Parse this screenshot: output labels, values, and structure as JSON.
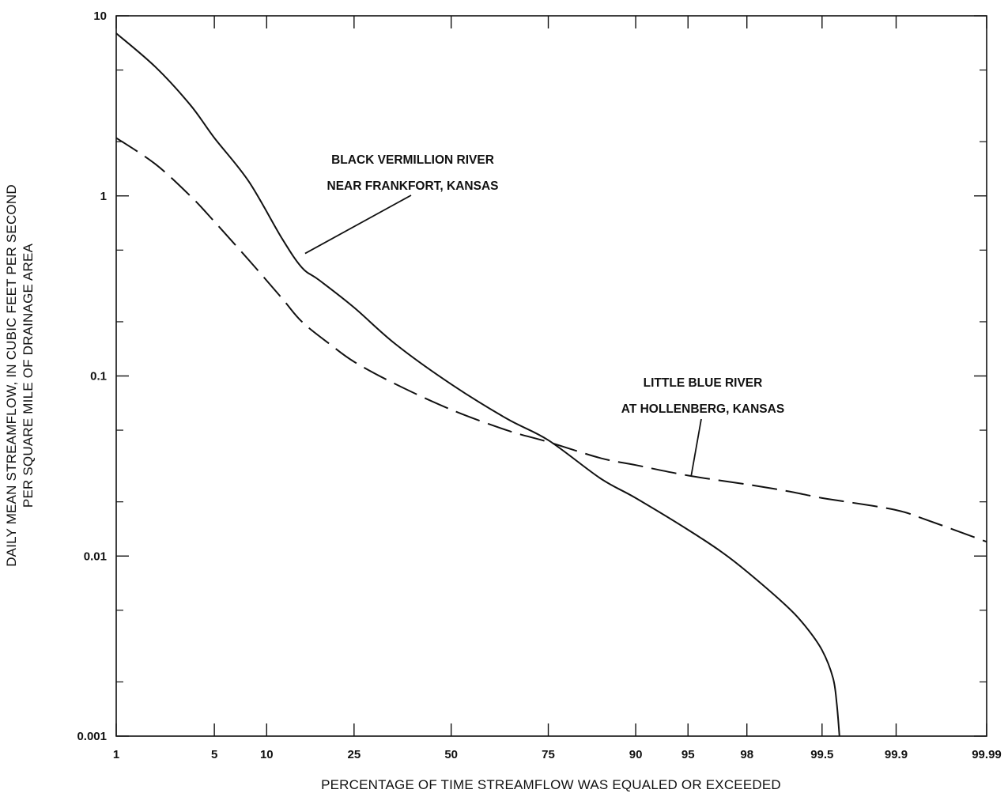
{
  "chart_data": {
    "type": "line",
    "xlabel": "PERCENTAGE OF TIME STREAMFLOW WAS EQUALED OR EXCEEDED",
    "ylabel": [
      "DAILY MEAN STREAMFLOW, IN CUBIC FEET PER SECOND",
      "PER SQUARE MILE OF DRAINAGE AREA"
    ],
    "x_scale": "normal-probability",
    "y_scale": "log",
    "xlim": [
      1,
      99.99
    ],
    "ylim": [
      0.001,
      10
    ],
    "x_ticks": [
      "1",
      "5",
      "10",
      "25",
      "50",
      "75",
      "90",
      "95",
      "98",
      "99.5",
      "99.9",
      "99.99"
    ],
    "y_ticks": [
      "10",
      "1",
      "0.1",
      "0.01",
      "0.001"
    ],
    "grid": false,
    "series": [
      {
        "name": "BLACK VERMILLION RIVER NEAR FRANKFORT, KANSAS",
        "style": "solid",
        "x": [
          1,
          2,
          3.5,
          5,
          8,
          12,
          15,
          18,
          25,
          35,
          50,
          65,
          75,
          85,
          90,
          95,
          97,
          98,
          99,
          99.3,
          99.5,
          99.6,
          99.63,
          99.65
        ],
        "y": [
          8,
          5.2,
          3.2,
          2.1,
          1.2,
          0.58,
          0.4,
          0.34,
          0.24,
          0.15,
          0.09,
          0.058,
          0.044,
          0.027,
          0.021,
          0.014,
          0.0105,
          0.0082,
          0.0053,
          0.0041,
          0.003,
          0.0021,
          0.0015,
          0.001
        ]
      },
      {
        "name": "LITTLE BLUE RIVER AT HOLLENBERG, KANSAS",
        "style": "dashed",
        "x": [
          1,
          2,
          3.5,
          5,
          8,
          12,
          15,
          20,
          25,
          35,
          50,
          65,
          75,
          85,
          90,
          95,
          98,
          99,
          99.5,
          99.7,
          99.9,
          99.95,
          99.99
        ],
        "y": [
          2.1,
          1.5,
          1.0,
          0.72,
          0.44,
          0.27,
          0.2,
          0.15,
          0.12,
          0.09,
          0.065,
          0.05,
          0.043,
          0.035,
          0.032,
          0.028,
          0.025,
          0.023,
          0.021,
          0.02,
          0.018,
          0.016,
          0.012
        ]
      }
    ],
    "annotations": [
      {
        "lines": [
          "BLACK VERMILLION RIVER",
          "NEAR FRANKFORT, KANSAS"
        ],
        "series": 0,
        "x": 15,
        "y": 0.46
      },
      {
        "lines": [
          "LITTLE BLUE RIVER",
          "AT HOLLENBERG, KANSAS"
        ],
        "series": 1,
        "x": 95,
        "y": 0.027
      }
    ]
  }
}
